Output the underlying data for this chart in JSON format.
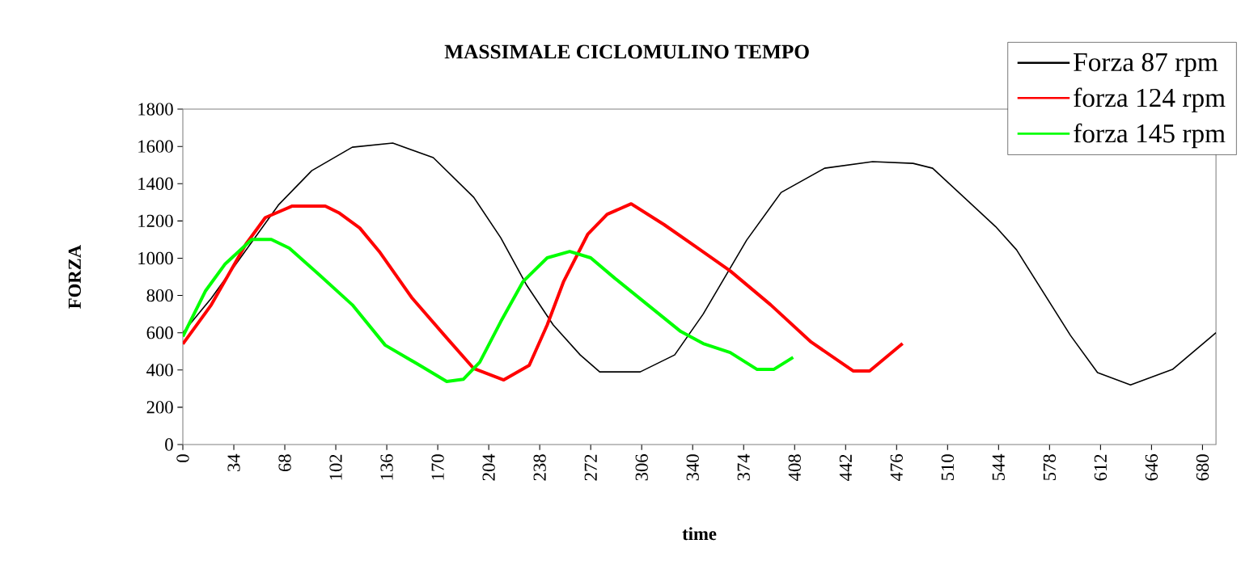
{
  "chart_data": {
    "type": "line",
    "title": "MASSIMALE CICLOMULINO TEMPO",
    "xlabel": "time",
    "ylabel": "FORZA",
    "xlim": [
      0,
      689
    ],
    "ylim": [
      0,
      1800
    ],
    "xticks": [
      0,
      34,
      68,
      102,
      136,
      170,
      204,
      238,
      272,
      306,
      340,
      374,
      408,
      442,
      476,
      510,
      544,
      578,
      612,
      646,
      680
    ],
    "yticks": [
      0,
      200,
      400,
      600,
      800,
      1000,
      1200,
      1400,
      1600,
      1800
    ],
    "grid": false,
    "legend": "top right",
    "marker": "none",
    "series": [
      {
        "name": "Forza 87 rpm",
        "color": "#000000",
        "x": [
          0,
          19,
          64,
          86,
          113,
          140,
          167,
          194,
          212,
          229,
          247,
          265,
          278,
          305,
          328,
          347,
          376,
          399,
          428,
          460,
          487,
          500,
          542,
          556,
          592,
          610,
          632,
          660,
          689
        ],
        "values": [
          600,
          785,
          1288,
          1470,
          1596,
          1618,
          1540,
          1327,
          1110,
          859,
          642,
          481,
          390,
          390,
          481,
          700,
          1097,
          1353,
          1483,
          1518,
          1509,
          1483,
          1170,
          1045,
          585,
          386,
          320,
          403,
          600
        ]
      },
      {
        "name": "forza 124 rpm",
        "color": "#ff0000",
        "x": [
          0,
          19,
          42,
          55,
          73,
          95,
          104,
          118,
          131,
          153,
          176,
          194,
          214,
          231,
          243,
          254,
          270,
          283,
          299,
          321,
          342,
          365,
          392,
          419,
          447,
          458,
          480
        ],
        "values": [
          540,
          750,
          1075,
          1218,
          1280,
          1280,
          1244,
          1162,
          1036,
          785,
          572,
          408,
          347,
          425,
          642,
          876,
          1128,
          1236,
          1292,
          1180,
          1062,
          932,
          750,
          550,
          395,
          395,
          542
        ]
      },
      {
        "name": "forza 145 rpm",
        "color": "#00ff00",
        "x": [
          0,
          15,
          28,
          46,
          59,
          71,
          91,
          113,
          135,
          158,
          176,
          187,
          198,
          212,
          227,
          243,
          258,
          272,
          288,
          310,
          332,
          347,
          365,
          383,
          394,
          407
        ],
        "values": [
          580,
          823,
          967,
          1101,
          1101,
          1054,
          911,
          750,
          533,
          425,
          338,
          350,
          442,
          659,
          876,
          1002,
          1036,
          1002,
          893,
          750,
          607,
          542,
          494,
          403,
          403,
          468
        ]
      }
    ]
  }
}
